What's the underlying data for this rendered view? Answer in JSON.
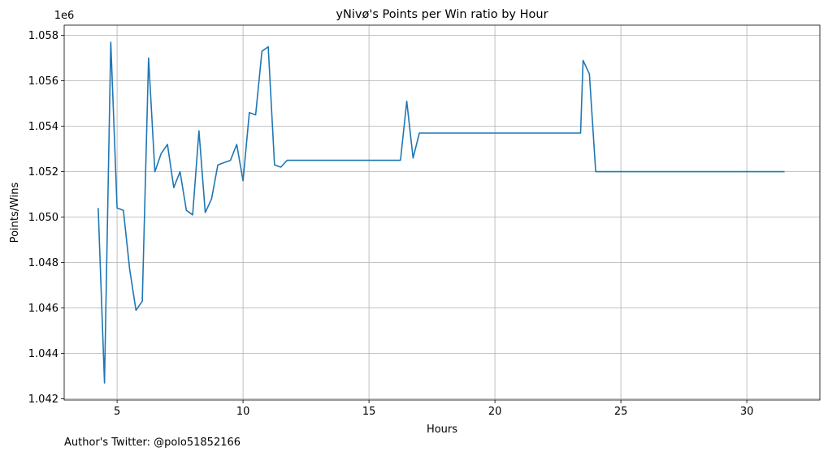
{
  "chart_data": {
    "type": "line",
    "title": "yNivø's Points per Win ratio by Hour",
    "xlabel": "Hours",
    "ylabel": "Points/Wins",
    "scale_label": "1e6",
    "xlim": [
      2.9,
      32.9
    ],
    "ylim": [
      1.04195,
      1.05845
    ],
    "xticks": [
      5,
      10,
      15,
      20,
      25,
      30
    ],
    "xtick_labels": [
      "5",
      "10",
      "15",
      "20",
      "25",
      "30"
    ],
    "yticks": [
      1.042,
      1.044,
      1.046,
      1.048,
      1.05,
      1.052,
      1.054,
      1.056,
      1.058
    ],
    "ytick_labels": [
      "1.042",
      "1.044",
      "1.046",
      "1.048",
      "1.050",
      "1.052",
      "1.054",
      "1.056",
      "1.058"
    ],
    "grid": true,
    "series": [
      {
        "color": "#1f77b4",
        "points": [
          [
            4.25,
            1.0504
          ],
          [
            4.5,
            1.0427
          ],
          [
            4.75,
            1.0577
          ],
          [
            5.0,
            1.0504
          ],
          [
            5.25,
            1.0503
          ],
          [
            5.5,
            1.0477
          ],
          [
            5.75,
            1.0459
          ],
          [
            6.0,
            1.0463
          ],
          [
            6.25,
            1.057
          ],
          [
            6.5,
            1.052
          ],
          [
            6.75,
            1.0528
          ],
          [
            7.0,
            1.0532
          ],
          [
            7.25,
            1.0513
          ],
          [
            7.5,
            1.052
          ],
          [
            7.75,
            1.0503
          ],
          [
            8.0,
            1.0501
          ],
          [
            8.25,
            1.0538
          ],
          [
            8.5,
            1.0502
          ],
          [
            8.75,
            1.0508
          ],
          [
            9.0,
            1.0523
          ],
          [
            9.25,
            1.0524
          ],
          [
            9.5,
            1.0525
          ],
          [
            9.75,
            1.0532
          ],
          [
            10.0,
            1.0516
          ],
          [
            10.25,
            1.0546
          ],
          [
            10.5,
            1.0545
          ],
          [
            10.75,
            1.0573
          ],
          [
            11.0,
            1.0575
          ],
          [
            11.25,
            1.0523
          ],
          [
            11.5,
            1.0522
          ],
          [
            11.75,
            1.0525
          ],
          [
            16.25,
            1.0525
          ],
          [
            16.5,
            1.0551
          ],
          [
            16.75,
            1.0526
          ],
          [
            17.0,
            1.0537
          ],
          [
            23.4,
            1.0537
          ],
          [
            23.5,
            1.0569
          ],
          [
            23.75,
            1.0563
          ],
          [
            24.0,
            1.052
          ],
          [
            25.5,
            1.052
          ],
          [
            25.75,
            1.052
          ],
          [
            31.5,
            1.052
          ]
        ]
      }
    ]
  },
  "footer": {
    "credit": "Author's Twitter: @polo51852166"
  }
}
